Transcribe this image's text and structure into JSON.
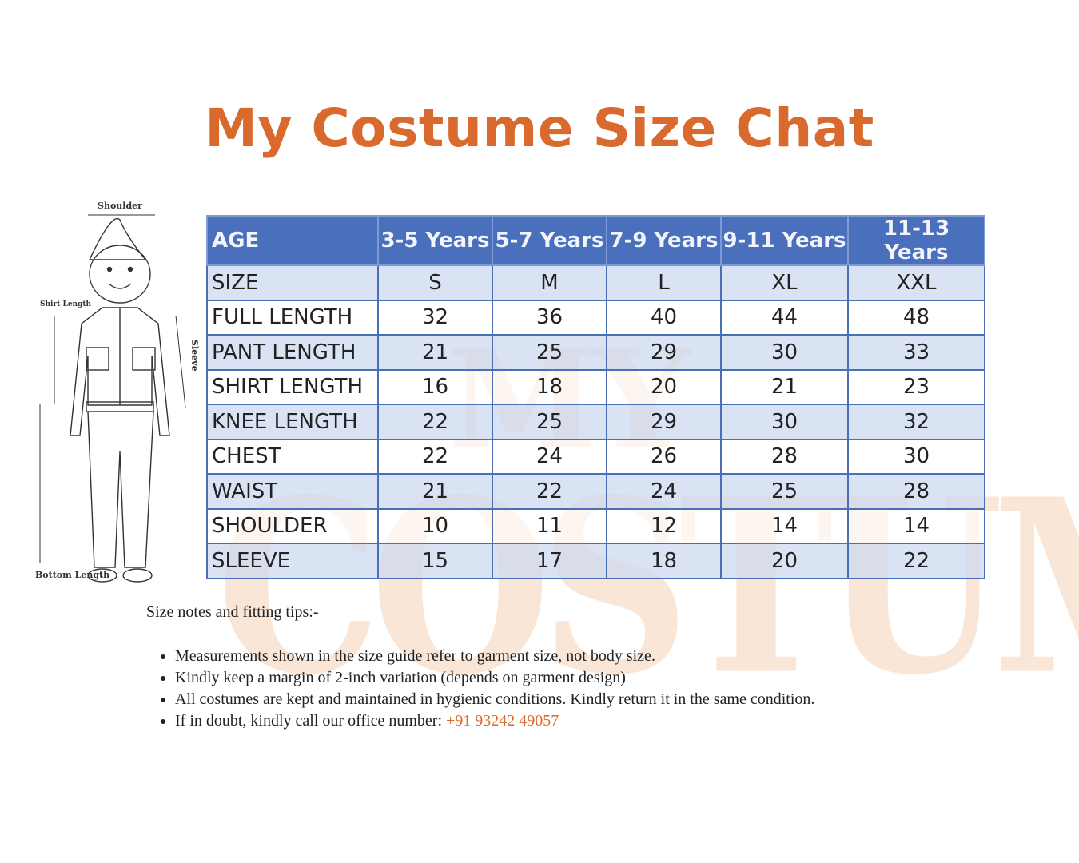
{
  "title": "My Costume Size Chat",
  "watermark": {
    "line1": "MY",
    "line2": "COSTUME",
    "color": "#f3c9a8"
  },
  "figure": {
    "labels": {
      "shoulder": "Shoulder",
      "shirt_length": "Shirt Length",
      "sleeve": "Sleeve",
      "bottom_length": "Bottom Length"
    }
  },
  "table": {
    "header": [
      "AGE",
      "3-5 Years",
      "5-7 Years",
      "7-9 Years",
      "9-11 Years",
      "11-13 Years"
    ],
    "rows": [
      [
        "SIZE",
        "S",
        "M",
        "L",
        "XL",
        "XXL"
      ],
      [
        "FULL LENGTH",
        "32",
        "36",
        "40",
        "44",
        "48"
      ],
      [
        "PANT LENGTH",
        "21",
        "25",
        "29",
        "30",
        "33"
      ],
      [
        "SHIRT LENGTH",
        "16",
        "18",
        "20",
        "21",
        "23"
      ],
      [
        "KNEE LENGTH",
        "22",
        "25",
        "29",
        "30",
        "32"
      ],
      [
        "CHEST",
        "22",
        "24",
        "26",
        "28",
        "30"
      ],
      [
        "WAIST",
        "21",
        "22",
        "24",
        "25",
        "28"
      ],
      [
        "SHOULDER",
        "10",
        "11",
        "12",
        "14",
        "14"
      ],
      [
        "SLEEVE",
        "15",
        "17",
        "18",
        "20",
        "22"
      ]
    ],
    "colors": {
      "header": "#4a70bd",
      "alt_row": "#cddaf0",
      "border": "#4a6fb8"
    }
  },
  "notes": {
    "heading": "Size notes and fitting tips:-",
    "items": [
      "Measurements shown in the size guide refer to garment size, not body size.",
      "Kindly keep a margin of 2-inch variation (depends on garment design)",
      "All costumes are kept and maintained in hygienic conditions. Kindly return it in the same condition.",
      "If in doubt, kindly call our office number: "
    ],
    "phone": "+91 93242 49057"
  },
  "accent": "#d9692c"
}
